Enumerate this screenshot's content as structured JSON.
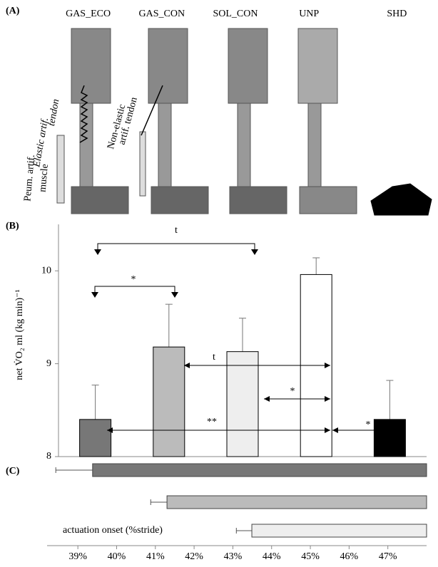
{
  "panel_a": {
    "label": "(A)",
    "annotations": [
      "Elastic artif.",
      "tendon",
      "Non-elastic",
      "artif. tendon",
      "Peum. artif.",
      "muscle"
    ]
  },
  "chart_data": [
    {
      "type": "bar",
      "panel_label": "(B)",
      "ylabel": "net V̇O₂ ml (kg min)⁻¹",
      "categories": [
        "GAS_ECO",
        "GAS_CON",
        "SOL_CON",
        "UNP",
        "SHD"
      ],
      "values": [
        8.4,
        9.18,
        9.13,
        9.96,
        8.4
      ],
      "errors": [
        0.37,
        0.46,
        0.36,
        0.18,
        0.42
      ],
      "colors": [
        "#777777",
        "#bbbbbb",
        "#eeeeee",
        "#ffffff",
        "#000000"
      ],
      "ylim": [
        8,
        10.5
      ],
      "yticks": [
        8,
        9,
        10
      ],
      "annotations": [
        "t",
        "*",
        "t",
        "*",
        "**",
        "*"
      ]
    },
    {
      "type": "barh",
      "panel_label": "(C)",
      "xlabel": "actuation onset (%stride)",
      "values": [
        39.38,
        41.3,
        43.49
      ],
      "errors": [
        0.95,
        0.42,
        0.4
      ],
      "colors": [
        "#777777",
        "#bbbbbb",
        "#eeeeee"
      ],
      "xlim": [
        38.5,
        48
      ],
      "xticks": [
        {
          "value": 39,
          "label": "39%"
        },
        {
          "value": 40,
          "label": "40%"
        },
        {
          "value": 41,
          "label": "41%"
        },
        {
          "value": 42,
          "label": "42%"
        },
        {
          "value": 43,
          "label": "43%"
        },
        {
          "value": 44,
          "label": "44%"
        },
        {
          "value": 45,
          "label": "45%"
        },
        {
          "value": 46,
          "label": "46%"
        },
        {
          "value": 47,
          "label": "47%"
        }
      ]
    }
  ]
}
